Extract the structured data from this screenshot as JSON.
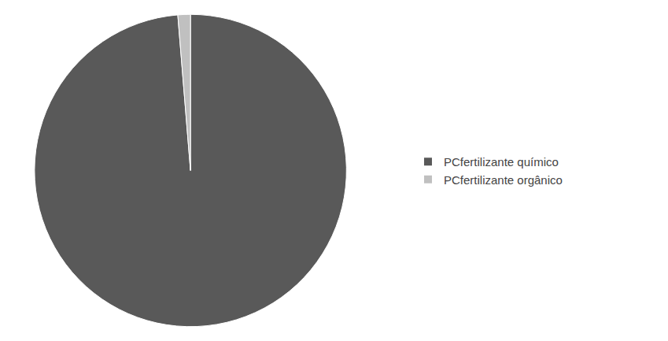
{
  "chart_data": {
    "type": "pie",
    "categories": [
      "PCfertilizante químico",
      "PCfertilizante orgânico"
    ],
    "values": [
      98.7,
      1.3
    ],
    "colors": [
      "#595959",
      "#c0c0c0"
    ],
    "legend": "right"
  }
}
